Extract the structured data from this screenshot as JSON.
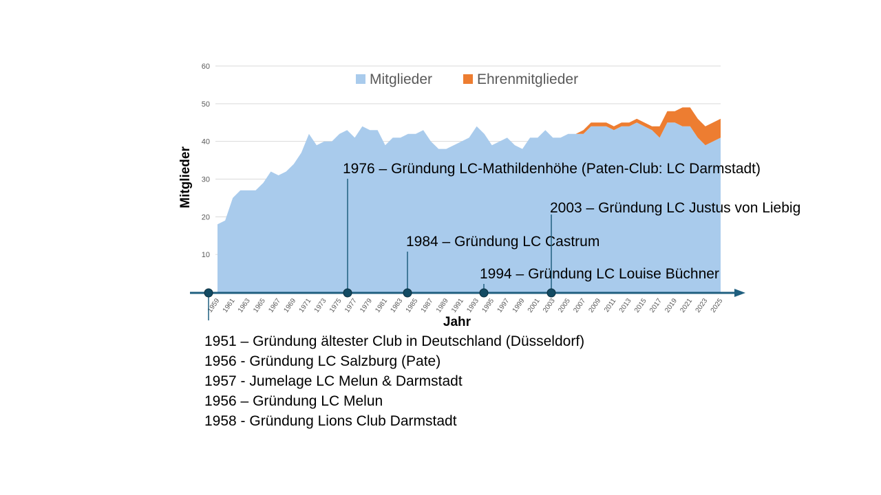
{
  "chart_data": {
    "type": "area",
    "stacked": true,
    "title": "",
    "xlabel": "Jahr",
    "ylabel": "Mitglieder",
    "ylim": [
      0,
      60
    ],
    "yticks": [
      "10",
      "20",
      "30",
      "40",
      "50",
      "60"
    ],
    "x_years": [
      1959,
      1960,
      1961,
      1962,
      1963,
      1964,
      1965,
      1966,
      1967,
      1968,
      1969,
      1970,
      1971,
      1972,
      1973,
      1974,
      1975,
      1976,
      1977,
      1978,
      1979,
      1980,
      1981,
      1982,
      1983,
      1984,
      1985,
      1986,
      1987,
      1988,
      1989,
      1990,
      1991,
      1992,
      1993,
      1994,
      1995,
      1996,
      1997,
      1998,
      1999,
      2000,
      2001,
      2002,
      2003,
      2004,
      2005,
      2006,
      2007,
      2008,
      2009,
      2010,
      2011,
      2012,
      2013,
      2014,
      2015,
      2016,
      2017,
      2018,
      2019,
      2020,
      2021,
      2022,
      2023,
      2024,
      2025
    ],
    "x_tick_labels": [
      "1959",
      "1961",
      "1963",
      "1965",
      "1967",
      "1969",
      "1971",
      "1973",
      "1975",
      "1977",
      "1979",
      "1981",
      "1983",
      "1985",
      "1987",
      "1989",
      "1991",
      "1993",
      "1995",
      "1997",
      "1999",
      "2001",
      "2003",
      "2005",
      "2007",
      "2009",
      "2011",
      "2013",
      "2015",
      "2017",
      "2019",
      "2021",
      "2023",
      "2025"
    ],
    "legend_position": "top",
    "series": [
      {
        "name": "Mitglieder",
        "color": "#a9cbec",
        "values": [
          18,
          19,
          25,
          27,
          27,
          27,
          29,
          32,
          31,
          32,
          34,
          37,
          42,
          39,
          40,
          40,
          42,
          43,
          41,
          44,
          43,
          43,
          39,
          41,
          41,
          42,
          42,
          43,
          40,
          38,
          38,
          39,
          40,
          41,
          44,
          42,
          39,
          40,
          41,
          39,
          38,
          41,
          41,
          43,
          41,
          41,
          42,
          42,
          42,
          44,
          44,
          44,
          43,
          44,
          44,
          45,
          44,
          43,
          41,
          45,
          45,
          44,
          44,
          41,
          39,
          40,
          41
        ]
      },
      {
        "name": "Ehrenmitglieder",
        "color": "#ed7d31",
        "values": [
          0,
          0,
          0,
          0,
          0,
          0,
          0,
          0,
          0,
          0,
          0,
          0,
          0,
          0,
          0,
          0,
          0,
          0,
          0,
          0,
          0,
          0,
          0,
          0,
          0,
          0,
          0,
          0,
          0,
          0,
          0,
          0,
          0,
          0,
          0,
          0,
          0,
          0,
          0,
          0,
          0,
          0,
          0,
          0,
          0,
          0,
          0,
          0,
          1,
          1,
          1,
          1,
          1,
          1,
          1,
          1,
          1,
          1,
          3,
          3,
          3,
          5,
          5,
          5,
          5,
          5,
          5
        ]
      }
    ]
  },
  "milestones": [
    {
      "year": 1959,
      "label": ""
    },
    {
      "year": 1976,
      "label": "1976 – Gründung LC-Mathildenhöhe (Paten-Club: LC Darmstadt)"
    },
    {
      "year": 1984,
      "label": "1984 – Gründung LC Castrum"
    },
    {
      "year": 1994,
      "label": "1994 – Gründung LC Louise Büchner"
    },
    {
      "year": 2003,
      "label": "2003 – Gründung LC Justus von Liebig"
    }
  ],
  "colors": {
    "timeline": "#1f5f7f",
    "grid": "#d9d9d9"
  },
  "notes": [
    "1951 – Gründung ältester Club in Deutschland (Düsseldorf)",
    "1956 - Gründung LC Salzburg (Pate)",
    "1957 - Jumelage LC Melun & Darmstadt",
    "1956 – Gründung LC Melun",
    "1958 - Gründung Lions Club Darmstadt"
  ]
}
